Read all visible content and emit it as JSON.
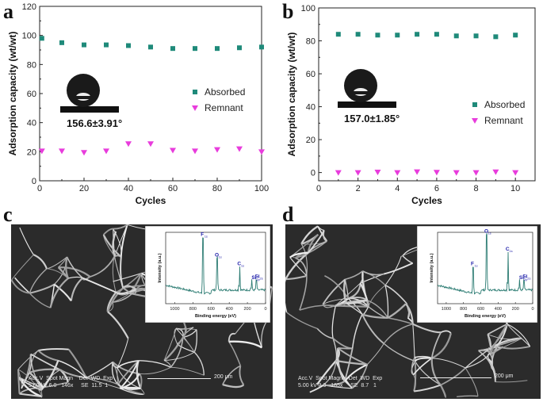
{
  "panels": {
    "a": "a",
    "b": "b",
    "c": "c",
    "d": "d"
  },
  "colors": {
    "absorbed": "#1f8a7a",
    "remnant": "#e83cdc",
    "xps_line": "#2e7d74",
    "label_blue": "#1a1aa8"
  },
  "chart_data": [
    {
      "id": "a",
      "type": "scatter",
      "xlabel": "Cycles",
      "ylabel": "Adsorption capacity (wt/wt)",
      "xlim": [
        0,
        100
      ],
      "ylim": [
        0,
        120
      ],
      "xticks": [
        "0",
        "20",
        "40",
        "60",
        "80",
        "100"
      ],
      "yticks": [
        "0",
        "20",
        "40",
        "60",
        "80",
        "100",
        "120"
      ],
      "series": [
        {
          "name": "Absorbed",
          "marker": "square",
          "x": [
            1,
            10,
            20,
            30,
            40,
            50,
            60,
            70,
            80,
            90,
            100
          ],
          "values": [
            98,
            95,
            93.5,
            93.5,
            93,
            92,
            91,
            91,
            91,
            91.5,
            92
          ]
        },
        {
          "name": "Remnant",
          "marker": "triangle-down",
          "x": [
            1,
            10,
            20,
            30,
            40,
            50,
            60,
            70,
            80,
            90,
            100
          ],
          "values": [
            20.5,
            20.5,
            19.5,
            20.5,
            25.5,
            25.5,
            21,
            20.5,
            21.5,
            22,
            20
          ]
        }
      ],
      "angle_label": "156.6±3.91°"
    },
    {
      "id": "b",
      "type": "scatter",
      "xlabel": "Cycles",
      "ylabel": "Adsorption capacity (wt/wt)",
      "xlim": [
        0,
        11
      ],
      "ylim": [
        -5,
        100
      ],
      "xticks": [
        "0",
        "2",
        "4",
        "6",
        "8",
        "10"
      ],
      "yticks": [
        "0",
        "20",
        "40",
        "60",
        "80",
        "100"
      ],
      "series": [
        {
          "name": "Absorbed",
          "marker": "square",
          "x": [
            1,
            2,
            3,
            4,
            5,
            6,
            7,
            8,
            9,
            10
          ],
          "values": [
            84,
            84,
            83.5,
            83.5,
            84,
            84,
            83,
            83,
            82.5,
            83.5
          ]
        },
        {
          "name": "Remnant",
          "marker": "triangle-down",
          "x": [
            1,
            2,
            3,
            4,
            5,
            6,
            7,
            8,
            9,
            10
          ],
          "values": [
            0,
            0,
            0.3,
            0,
            0.5,
            0.2,
            0,
            0,
            0.4,
            0
          ]
        }
      ],
      "angle_label": "157.0±1.85°"
    }
  ],
  "xps": [
    {
      "id": "c",
      "ylabel": "Intensity (a.u.)",
      "xlabel": "Binding energy (eV)",
      "xticks": [
        "1000",
        "800",
        "600",
        "400",
        "200",
        "0"
      ],
      "peaks": [
        {
          "label": "F",
          "sub": "1s",
          "be": 688,
          "h": 0.95
        },
        {
          "label": "O",
          "sub": "1s",
          "be": 532,
          "h": 0.55
        },
        {
          "label": "C",
          "sub": "1s",
          "be": 285,
          "h": 0.4
        },
        {
          "label": "Si",
          "sub": "2s",
          "be": 153,
          "h": 0.18
        },
        {
          "label": "Si",
          "sub": "2p",
          "be": 102,
          "h": 0.16
        }
      ]
    },
    {
      "id": "d",
      "ylabel": "Intensity (a.u.)",
      "xlabel": "Binding energy (eV)",
      "xticks": [
        "1000",
        "800",
        "600",
        "400",
        "200",
        "0"
      ],
      "peaks": [
        {
          "label": "F",
          "sub": "1s",
          "be": 688,
          "h": 0.45
        },
        {
          "label": "O",
          "sub": "1s",
          "be": 532,
          "h": 0.95
        },
        {
          "label": "C",
          "sub": "1s",
          "be": 285,
          "h": 0.65
        },
        {
          "label": "Si",
          "sub": "2s",
          "be": 153,
          "h": 0.18
        },
        {
          "label": "Si",
          "sub": "2p",
          "be": 102,
          "h": 0.16
        }
      ]
    }
  ],
  "sem": [
    {
      "id": "c",
      "meta": "Acc.V  Spot Magn    Det  WD  Exp\n5.00 kV 6.0   146x     SE  11.5  1",
      "scale": "200 μm"
    },
    {
      "id": "d",
      "meta": "Acc.V  Spot Magn    Det  WD  Exp\n5.00 kV 3.0   165x     SE  8.7   1",
      "scale": "200 μm"
    }
  ]
}
